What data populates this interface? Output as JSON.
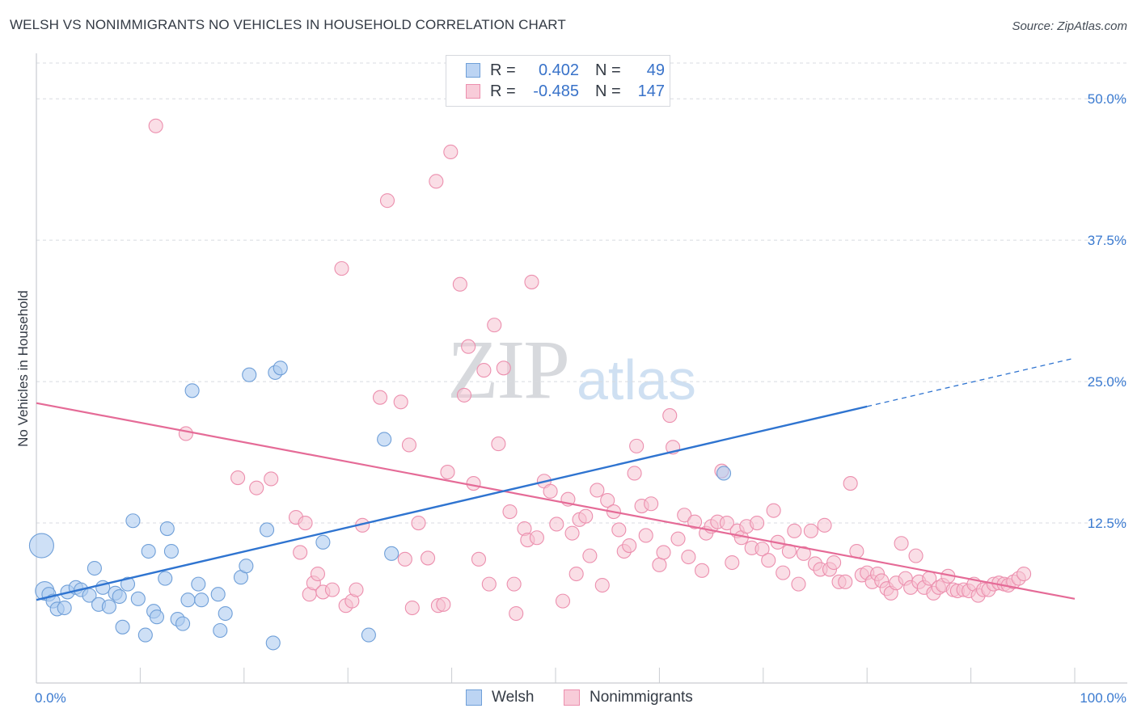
{
  "header": {
    "title": "WELSH VS NONIMMIGRANTS NO VEHICLES IN HOUSEHOLD CORRELATION CHART",
    "source": "Source: ZipAtlas.com"
  },
  "watermark": {
    "zip": "ZIP",
    "atlas": "atlas"
  },
  "legend": {
    "rows": [
      {
        "r_label": "R =",
        "r_value": "0.402",
        "n_label": "N =",
        "n_value": "49"
      },
      {
        "r_label": "R =",
        "r_value": "-0.485",
        "n_label": "N =",
        "n_value": "147"
      }
    ]
  },
  "bottom_legend": {
    "welsh": "Welsh",
    "nonimmigrants": "Nonimmigrants"
  },
  "colors": {
    "welsh_fill": "#aecbf0",
    "welsh_stroke": "#6f9fd8",
    "welsh_line": "#2f74d0",
    "non_fill": "#f6c2d2",
    "non_stroke": "#ec8fae",
    "non_line": "#e56b97",
    "grid": "#d8dbe0",
    "tick_text": "#3a7ad0"
  },
  "chart_data": {
    "type": "scatter",
    "title": "WELSH VS NONIMMIGRANTS NO VEHICLES IN HOUSEHOLD CORRELATION CHART",
    "xlabel": "",
    "ylabel": "No Vehicles in Household",
    "xlim": [
      0,
      100
    ],
    "ylim": [
      0,
      53.3
    ],
    "x_tick_labels": [
      "0.0%",
      "100.0%"
    ],
    "y_ticks": [
      12.5,
      25.0,
      37.5,
      50.0
    ],
    "y_tick_labels": [
      "12.5%",
      "25.0%",
      "37.5%",
      "50.0%"
    ],
    "grid": true,
    "legend_position": "top-center",
    "series": [
      {
        "name": "Welsh",
        "trend": {
          "x0": 0,
          "y0": 5.7,
          "x1": 80,
          "y1": 22.8,
          "dashed_to": 100
        },
        "points": [
          [
            0.5,
            10.5,
            "L"
          ],
          [
            0.8,
            6.5,
            "M"
          ],
          [
            1.2,
            6.2
          ],
          [
            1.6,
            5.6
          ],
          [
            2.0,
            4.9
          ],
          [
            2.7,
            5.0
          ],
          [
            3.0,
            6.4
          ],
          [
            3.8,
            6.8
          ],
          [
            4.3,
            6.6
          ],
          [
            5.1,
            6.1
          ],
          [
            5.6,
            8.5
          ],
          [
            6.0,
            5.3
          ],
          [
            6.4,
            6.8
          ],
          [
            7.0,
            5.1
          ],
          [
            7.6,
            6.3
          ],
          [
            8.0,
            6.0
          ],
          [
            8.3,
            3.3
          ],
          [
            8.8,
            7.1
          ],
          [
            9.3,
            12.7
          ],
          [
            9.8,
            5.8
          ],
          [
            10.5,
            2.6
          ],
          [
            10.8,
            10.0
          ],
          [
            11.3,
            4.7
          ],
          [
            11.6,
            4.2
          ],
          [
            12.4,
            7.6
          ],
          [
            12.6,
            12.0
          ],
          [
            13.0,
            10.0
          ],
          [
            13.6,
            4.0
          ],
          [
            14.1,
            3.6
          ],
          [
            14.6,
            5.7
          ],
          [
            15.0,
            24.2
          ],
          [
            15.6,
            7.1
          ],
          [
            15.9,
            5.7
          ],
          [
            17.5,
            6.2
          ],
          [
            17.7,
            3.0
          ],
          [
            18.2,
            4.5
          ],
          [
            19.7,
            7.7
          ],
          [
            20.2,
            8.7
          ],
          [
            20.5,
            25.6
          ],
          [
            22.2,
            11.9
          ],
          [
            22.8,
            1.9
          ],
          [
            23.0,
            25.8
          ],
          [
            23.5,
            26.2
          ],
          [
            27.6,
            10.8
          ],
          [
            32.0,
            2.6
          ],
          [
            33.5,
            19.9
          ],
          [
            34.2,
            9.8
          ],
          [
            66.2,
            16.9
          ]
        ]
      },
      {
        "name": "Nonimmigrants",
        "trend": {
          "x0": 0,
          "y0": 23.1,
          "x1": 100,
          "y1": 5.8
        },
        "points": [
          [
            11.5,
            47.6
          ],
          [
            14.4,
            20.4
          ],
          [
            19.4,
            16.5
          ],
          [
            21.2,
            15.6
          ],
          [
            22.6,
            16.4
          ],
          [
            25.0,
            13.0
          ],
          [
            25.4,
            9.9
          ],
          [
            25.9,
            12.5
          ],
          [
            26.3,
            6.2
          ],
          [
            26.7,
            7.2
          ],
          [
            27.1,
            8.0
          ],
          [
            27.6,
            6.4
          ],
          [
            28.5,
            6.6
          ],
          [
            29.4,
            35.0
          ],
          [
            29.8,
            5.2
          ],
          [
            30.4,
            5.6
          ],
          [
            30.8,
            6.6
          ],
          [
            31.4,
            12.3
          ],
          [
            33.1,
            23.6
          ],
          [
            33.8,
            41.0
          ],
          [
            35.1,
            23.2
          ],
          [
            35.5,
            9.3
          ],
          [
            35.9,
            19.4
          ],
          [
            36.2,
            5.0
          ],
          [
            36.8,
            12.5
          ],
          [
            37.7,
            9.4
          ],
          [
            38.5,
            42.7
          ],
          [
            38.7,
            5.2
          ],
          [
            39.2,
            5.3
          ],
          [
            39.6,
            17.0
          ],
          [
            39.9,
            45.3
          ],
          [
            40.8,
            33.6
          ],
          [
            41.2,
            23.8
          ],
          [
            41.6,
            28.1
          ],
          [
            42.1,
            16.0
          ],
          [
            42.6,
            9.3
          ],
          [
            43.1,
            26.0
          ],
          [
            43.6,
            7.1
          ],
          [
            44.1,
            30.0
          ],
          [
            44.5,
            19.5
          ],
          [
            45.0,
            26.2
          ],
          [
            45.6,
            13.5
          ],
          [
            46.0,
            7.1
          ],
          [
            46.2,
            4.5
          ],
          [
            47.0,
            12.0
          ],
          [
            47.3,
            11.0
          ],
          [
            47.7,
            33.8
          ],
          [
            48.2,
            11.2
          ],
          [
            48.9,
            16.2
          ],
          [
            49.5,
            15.3
          ],
          [
            50.1,
            12.4
          ],
          [
            50.7,
            5.6
          ],
          [
            51.2,
            14.6
          ],
          [
            51.6,
            11.6
          ],
          [
            52.0,
            8.0
          ],
          [
            52.3,
            12.8
          ],
          [
            52.9,
            13.1
          ],
          [
            53.3,
            9.6
          ],
          [
            54.0,
            15.4
          ],
          [
            54.5,
            7.0
          ],
          [
            55.0,
            14.5
          ],
          [
            55.6,
            13.5
          ],
          [
            56.1,
            11.9
          ],
          [
            56.6,
            10.0
          ],
          [
            57.1,
            10.5
          ],
          [
            57.6,
            16.9
          ],
          [
            57.8,
            19.3
          ],
          [
            58.3,
            14.0
          ],
          [
            58.7,
            11.4
          ],
          [
            59.2,
            14.2
          ],
          [
            60.0,
            8.8
          ],
          [
            60.4,
            9.9
          ],
          [
            61.0,
            22.0
          ],
          [
            61.3,
            19.2
          ],
          [
            61.8,
            11.1
          ],
          [
            62.4,
            13.2
          ],
          [
            62.8,
            9.5
          ],
          [
            63.4,
            12.6
          ],
          [
            64.1,
            8.3
          ],
          [
            64.5,
            11.6
          ],
          [
            65.0,
            12.2
          ],
          [
            65.6,
            12.6
          ],
          [
            66.0,
            17.1
          ],
          [
            66.5,
            12.5
          ],
          [
            67.0,
            9.0
          ],
          [
            67.5,
            11.8
          ],
          [
            67.9,
            11.2
          ],
          [
            68.4,
            12.2
          ],
          [
            68.9,
            10.3
          ],
          [
            69.4,
            12.5
          ],
          [
            69.9,
            10.2
          ],
          [
            70.5,
            9.2
          ],
          [
            71.0,
            13.6
          ],
          [
            71.4,
            10.8
          ],
          [
            71.9,
            8.1
          ],
          [
            72.5,
            10.0
          ],
          [
            73.0,
            11.8
          ],
          [
            73.4,
            7.1
          ],
          [
            73.9,
            9.8
          ],
          [
            74.6,
            11.8
          ],
          [
            75.0,
            8.9
          ],
          [
            75.5,
            8.4
          ],
          [
            75.9,
            12.3
          ],
          [
            76.4,
            8.4
          ],
          [
            76.8,
            9.0
          ],
          [
            77.3,
            7.3
          ],
          [
            77.9,
            7.3
          ],
          [
            78.4,
            16.0
          ],
          [
            79.0,
            10.0
          ],
          [
            79.5,
            7.9
          ],
          [
            80.0,
            8.1
          ],
          [
            80.5,
            7.3
          ],
          [
            81.0,
            8.0
          ],
          [
            81.4,
            7.4
          ],
          [
            81.9,
            6.7
          ],
          [
            82.3,
            6.3
          ],
          [
            82.8,
            7.2
          ],
          [
            83.3,
            10.7
          ],
          [
            83.7,
            7.6
          ],
          [
            84.2,
            6.8
          ],
          [
            84.7,
            9.6
          ],
          [
            85.0,
            7.3
          ],
          [
            85.5,
            6.8
          ],
          [
            86.0,
            7.6
          ],
          [
            86.4,
            6.3
          ],
          [
            86.9,
            6.8
          ],
          [
            87.3,
            7.0
          ],
          [
            87.8,
            7.8
          ],
          [
            88.3,
            6.6
          ],
          [
            88.7,
            6.5
          ],
          [
            89.3,
            6.6
          ],
          [
            89.8,
            6.5
          ],
          [
            90.3,
            7.1
          ],
          [
            90.7,
            6.1
          ],
          [
            91.2,
            6.6
          ],
          [
            91.7,
            6.6
          ],
          [
            92.2,
            7.1
          ],
          [
            92.7,
            7.2
          ],
          [
            93.2,
            7.1
          ],
          [
            93.6,
            7.0
          ],
          [
            94.1,
            7.3
          ],
          [
            94.6,
            7.6
          ],
          [
            95.1,
            8.0
          ]
        ]
      }
    ]
  }
}
